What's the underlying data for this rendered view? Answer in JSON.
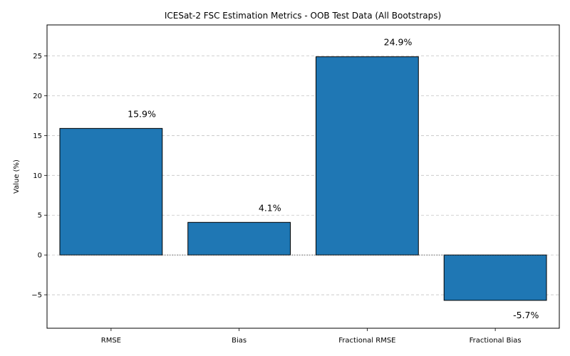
{
  "chart_data": {
    "type": "bar",
    "title": "ICESat-2 FSC Estimation Metrics - OOB Test Data (All Bootstraps)",
    "xlabel": "",
    "ylabel": "Value (%)",
    "categories": [
      "RMSE",
      "Bias",
      "Fractional RMSE",
      "Fractional Bias"
    ],
    "values": [
      15.9,
      4.1,
      24.9,
      -5.7
    ],
    "data_labels": [
      "15.9%",
      "4.1%",
      "24.9%",
      "-5.7%"
    ],
    "ylim": [
      -9.2,
      28.9
    ],
    "yticks": [
      -5,
      0,
      5,
      10,
      15,
      20,
      25
    ],
    "ytick_labels": [
      "−5",
      "0",
      "5",
      "10",
      "15",
      "20",
      "25"
    ],
    "grid": "y-dashed",
    "colors": {
      "bar": "#1f77b4",
      "bar_edge": "#000000",
      "grid": "#c4c4c4"
    }
  }
}
